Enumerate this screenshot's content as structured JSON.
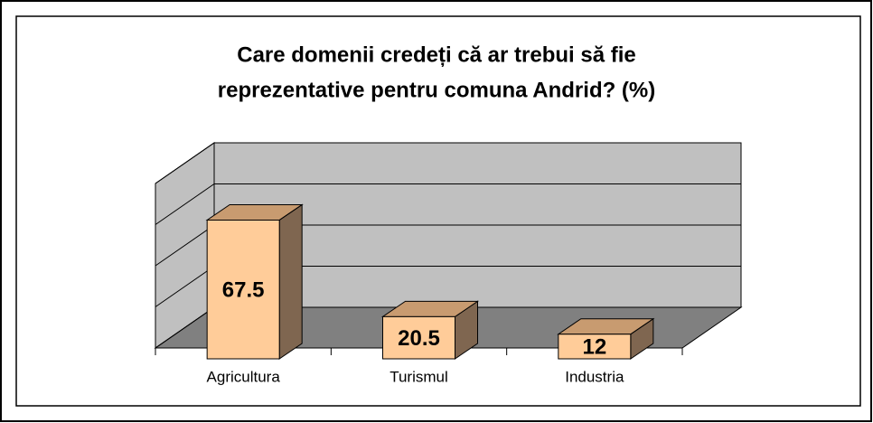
{
  "chart_data": {
    "type": "bar3d",
    "title": [
      "Care domenii credeți că ar trebui să fie",
      "reprezentative pentru comuna Andrid? (%)"
    ],
    "categories": [
      "Agricultura",
      "Turismul",
      "Industria"
    ],
    "values": [
      67.5,
      20.5,
      12
    ],
    "color": "#ffcc99",
    "ylim": [
      0,
      80
    ],
    "yticks": [
      0,
      20,
      40,
      60,
      80
    ],
    "grid": true
  }
}
